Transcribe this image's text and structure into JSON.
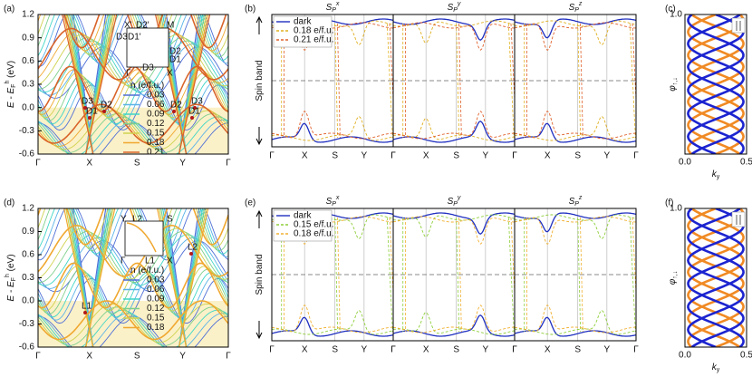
{
  "panels": [
    {
      "label": "(a)",
      "ylabel": {
        "main": "E - E",
        "sub": "F",
        "sup": "h",
        "unit": " (eV)"
      },
      "ylim": [
        -0.6,
        1.2
      ],
      "yticks": [
        1.2,
        0.9,
        0.6,
        0.3,
        {
          "value": 0,
          "label": "0.0"
        },
        -0.3,
        -0.6
      ],
      "xticks": [
        "Γ",
        "X",
        "S",
        "Y",
        "Γ"
      ],
      "legend_title": {
        "main": "n",
        "unit": " (e/f.u.)"
      },
      "legend": [
        {
          "label": "0.03",
          "color": "#4f6fd6"
        },
        {
          "label": "0.06",
          "color": "#5ab3e8"
        },
        {
          "label": "0.09",
          "color": "#3fd6c6"
        },
        {
          "label": "0.12",
          "color": "#7ed08c"
        },
        {
          "label": "0.15",
          "color": "#cfd24f"
        },
        {
          "label": "0.18",
          "color": "#f0a830"
        },
        {
          "label": "0.21",
          "color": "#d9642a"
        }
      ],
      "inset_labels": [
        "X'",
        "D2'",
        "M",
        "D3",
        "D1'",
        "D2",
        "D1",
        "Γ",
        "D3",
        "X"
      ],
      "point_labels": [
        "D3",
        "D2",
        "D1",
        "D2",
        "D3",
        "D1"
      ]
    },
    {
      "label": "(b)",
      "ylabel": {
        "main": "Spin band"
      },
      "subtitles": [
        {
          "main": "S",
          "sub": "P",
          "sup": "x"
        },
        {
          "main": "S",
          "sub": "P",
          "sup": "y"
        },
        {
          "main": "S",
          "sub": "P",
          "sup": "z"
        }
      ],
      "xticks": [
        "Γ",
        "X",
        "S",
        "Y",
        "Γ"
      ],
      "legend": [
        {
          "label": "dark",
          "color": "#1f2fbf",
          "dash": false
        },
        {
          "label": "0.18 e/f.u.",
          "color": "#e0b020",
          "dash": true
        },
        {
          "label": "0.21 e/f.u.",
          "color": "#e0602a",
          "dash": true
        }
      ]
    },
    {
      "label": "(c)",
      "ylabel": {
        "main": "φ",
        "sub": "↑,↓"
      },
      "xlabel": {
        "main": "k",
        "sub": "y"
      },
      "xlim": [
        0,
        0.5
      ],
      "xticks": [
        {
          "value": 0,
          "label": "0.0"
        },
        0.5
      ],
      "ylim": [
        0,
        1
      ],
      "yticks": [
        {
          "value": 1,
          "label": "1.0"
        }
      ]
    },
    {
      "label": "(d)",
      "ylabel": {
        "main": "E - E",
        "sub": "F",
        "sup": "h",
        "unit": " (eV)"
      },
      "ylim": [
        -0.6,
        1.2
      ],
      "yticks": [
        1.2,
        0.9,
        0.6,
        0.3,
        {
          "value": 0,
          "label": "0.0"
        },
        -0.3,
        -0.6
      ],
      "xticks": [
        "Γ",
        "X",
        "S",
        "Y",
        "Γ"
      ],
      "legend_title": {
        "main": "n",
        "unit": " (e/f.u.)"
      },
      "legend": [
        {
          "label": "0.03",
          "color": "#4f6fd6"
        },
        {
          "label": "0.06",
          "color": "#5ab3e8"
        },
        {
          "label": "0.09",
          "color": "#3fd6c6"
        },
        {
          "label": "0.12",
          "color": "#7ed08c"
        },
        {
          "label": "0.15",
          "color": "#cfd24f"
        },
        {
          "label": "0.18",
          "color": "#f0a830"
        }
      ],
      "inset_labels": [
        "Y",
        "L2",
        "S",
        "Γ",
        "L1",
        "X"
      ],
      "point_labels": [
        "L1",
        "L2"
      ]
    },
    {
      "label": "(e)",
      "ylabel": {
        "main": "Spin band"
      },
      "subtitles": [
        {
          "main": "S",
          "sub": "P",
          "sup": "x"
        },
        {
          "main": "S",
          "sub": "P",
          "sup": "y"
        },
        {
          "main": "S",
          "sub": "P",
          "sup": "z"
        }
      ],
      "xticks": [
        "Γ",
        "X",
        "S",
        "Y",
        "Γ"
      ],
      "legend": [
        {
          "label": "dark",
          "color": "#1f2fbf",
          "dash": false
        },
        {
          "label": "0.15 e/f.u.",
          "color": "#8fcf3a",
          "dash": true
        },
        {
          "label": "0.18 e/f.u.",
          "color": "#f0b030",
          "dash": true
        }
      ]
    },
    {
      "label": "(f)",
      "ylabel": {
        "main": "φ",
        "sub": "↑,↓"
      },
      "xlabel": {
        "main": "k",
        "sub": "y"
      },
      "xlim": [
        0,
        0.5
      ],
      "xticks": [
        {
          "value": 0,
          "label": "0.0"
        },
        0.5
      ],
      "ylim": [
        0,
        1
      ],
      "yticks": [
        {
          "value": 1,
          "label": "1.0"
        }
      ]
    }
  ]
}
